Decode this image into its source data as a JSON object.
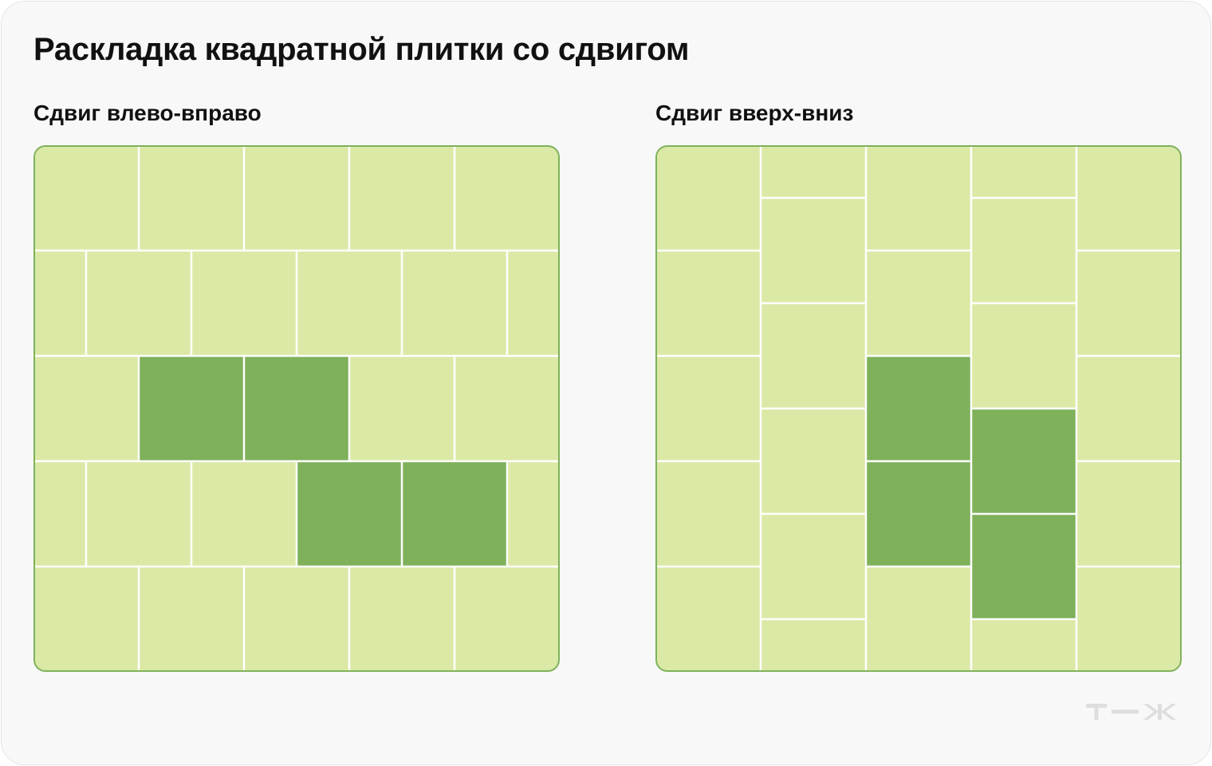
{
  "title": "Раскладка квадратной плитки со сдвигом",
  "panels": {
    "left": {
      "label": "Сдвиг влево-вправо",
      "layout": "horizontal-offset",
      "rows": 5,
      "offset_fraction": 0.5,
      "highlighted_tiles": [
        {
          "row": 2,
          "col": 1
        },
        {
          "row": 2,
          "col": 2
        },
        {
          "row": 3,
          "col": 2
        },
        {
          "row": 3,
          "col": 3
        }
      ]
    },
    "right": {
      "label": "Сдвиг вверх-вниз",
      "layout": "vertical-offset",
      "columns": 5,
      "offset_fraction": 0.5,
      "highlighted_tiles": [
        {
          "col": 2,
          "row": 2
        },
        {
          "col": 2,
          "row": 3
        },
        {
          "col": 3,
          "row": 2
        },
        {
          "col": 3,
          "row": 3
        }
      ]
    }
  },
  "colors": {
    "card_background": "#f8f8f8",
    "tile_light": "#dbe9a6",
    "tile_dark": "#7fb15b",
    "grout": "#ffffff",
    "panel_border": "#7fb15b",
    "logo": "#dedede"
  },
  "logo": {
    "icon": "tzh-logo-icon"
  }
}
